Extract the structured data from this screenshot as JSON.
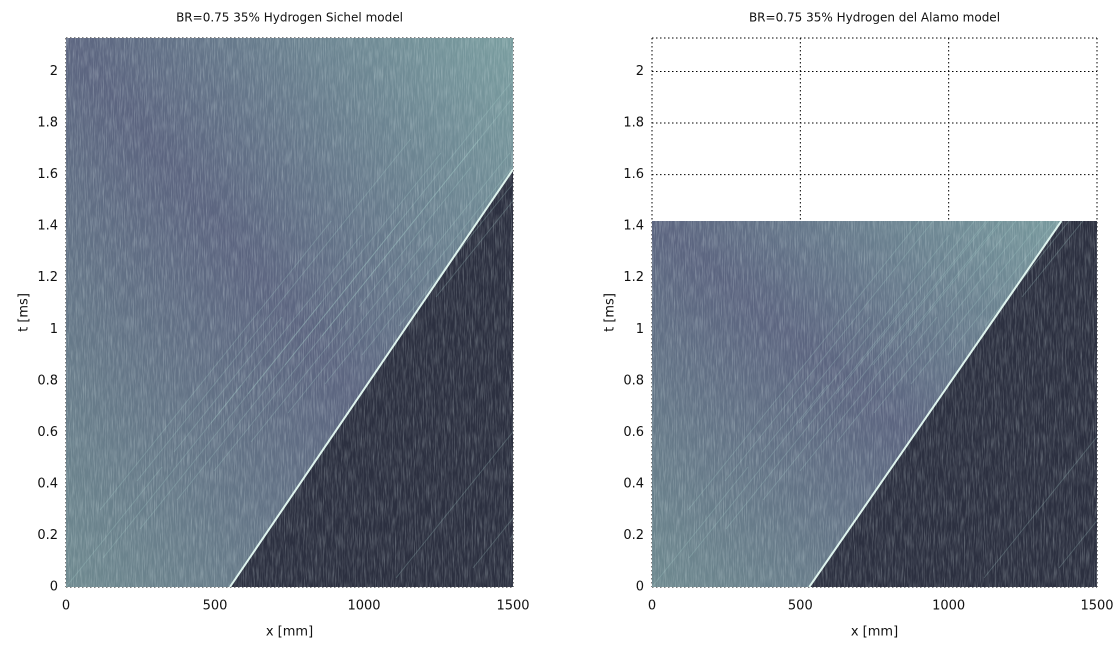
{
  "chart_data": [
    {
      "type": "image",
      "title": "BR=0.75 35% Hydrogen  Sichel model",
      "xlabel": "x [mm]",
      "ylabel": "t [ms]",
      "xlim": [
        0,
        1500
      ],
      "ylim": [
        0,
        2.13
      ],
      "xticks": [
        0,
        500,
        1000,
        1500
      ],
      "yticks": [
        0,
        0.2,
        0.4,
        0.6,
        0.8,
        1,
        1.2,
        1.4,
        1.6,
        1.8,
        2
      ],
      "grid": true,
      "data_tmax": 2.13,
      "front": {
        "x": [
          550,
          1500
        ],
        "t": [
          0,
          1.62
        ]
      }
    },
    {
      "type": "image",
      "title": "BR=0.75 35% Hydrogen  del Alamo model",
      "xlabel": "x [mm]",
      "ylabel": "t [ms]",
      "xlim": [
        0,
        1500
      ],
      "ylim": [
        0,
        2.13
      ],
      "xticks": [
        0,
        500,
        1000,
        1500
      ],
      "yticks": [
        0,
        0.2,
        0.4,
        0.6,
        0.8,
        1,
        1.2,
        1.4,
        1.6,
        1.8,
        2
      ],
      "grid": true,
      "data_tmax": 1.42,
      "front": {
        "x": [
          530,
          1380
        ],
        "t": [
          0,
          1.42
        ]
      }
    }
  ]
}
